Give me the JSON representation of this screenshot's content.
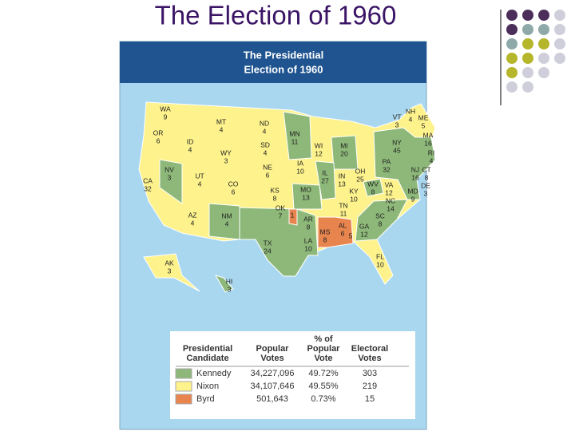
{
  "title": "The Election of 1960",
  "map": {
    "heading": [
      "The Presidential",
      "Election of 1960"
    ],
    "states": [
      {
        "abbr": "WA",
        "votes": 9
      },
      {
        "abbr": "OR",
        "votes": 6
      },
      {
        "abbr": "CA",
        "votes": 32
      },
      {
        "abbr": "NV",
        "votes": 3
      },
      {
        "abbr": "ID",
        "votes": 4
      },
      {
        "abbr": "MT",
        "votes": 4
      },
      {
        "abbr": "WY",
        "votes": 3
      },
      {
        "abbr": "UT",
        "votes": 4
      },
      {
        "abbr": "AZ",
        "votes": 4
      },
      {
        "abbr": "CO",
        "votes": 6
      },
      {
        "abbr": "NM",
        "votes": 4
      },
      {
        "abbr": "ND",
        "votes": 4
      },
      {
        "abbr": "SD",
        "votes": 4
      },
      {
        "abbr": "NE",
        "votes": 6
      },
      {
        "abbr": "KS",
        "votes": 8
      },
      {
        "abbr": "OK",
        "votes": 7,
        "extra": 1
      },
      {
        "abbr": "TX",
        "votes": 24
      },
      {
        "abbr": "MN",
        "votes": 11
      },
      {
        "abbr": "IA",
        "votes": 10
      },
      {
        "abbr": "MO",
        "votes": 13
      },
      {
        "abbr": "AR",
        "votes": 8
      },
      {
        "abbr": "LA",
        "votes": 10
      },
      {
        "abbr": "WI",
        "votes": 12
      },
      {
        "abbr": "IL",
        "votes": 27
      },
      {
        "abbr": "MI",
        "votes": 20
      },
      {
        "abbr": "IN",
        "votes": 13
      },
      {
        "abbr": "OH",
        "votes": 25
      },
      {
        "abbr": "KY",
        "votes": 10
      },
      {
        "abbr": "TN",
        "votes": 11
      },
      {
        "abbr": "MS",
        "votes": 8
      },
      {
        "abbr": "AL",
        "votes": 6,
        "extra": 5
      },
      {
        "abbr": "GA",
        "votes": 12
      },
      {
        "abbr": "FL",
        "votes": 10
      },
      {
        "abbr": "SC",
        "votes": 8
      },
      {
        "abbr": "NC",
        "votes": 14
      },
      {
        "abbr": "VA",
        "votes": 12
      },
      {
        "abbr": "WV",
        "votes": 8
      },
      {
        "abbr": "PA",
        "votes": 32
      },
      {
        "abbr": "NY",
        "votes": 45
      },
      {
        "abbr": "VT",
        "votes": 3
      },
      {
        "abbr": "NH",
        "votes": 4
      },
      {
        "abbr": "ME",
        "votes": 5
      },
      {
        "abbr": "MA",
        "votes": 16
      },
      {
        "abbr": "RI",
        "votes": 4
      },
      {
        "abbr": "CT",
        "votes": 8
      },
      {
        "abbr": "NJ",
        "votes": 16
      },
      {
        "abbr": "DE",
        "votes": 3
      },
      {
        "abbr": "MD",
        "votes": 9
      },
      {
        "abbr": "AK",
        "votes": 3
      },
      {
        "abbr": "HI",
        "votes": 3
      }
    ]
  },
  "legend": {
    "headers": [
      [
        "Presidential",
        "Candidate"
      ],
      [
        "Popular",
        "Votes"
      ],
      [
        "% of",
        "Popular",
        "Vote"
      ],
      [
        "Electoral",
        "Votes"
      ]
    ],
    "rows": [
      {
        "candidate": "Kennedy",
        "popular": "34,227,096",
        "percent": "49.72%",
        "electoral": 303
      },
      {
        "candidate": "Nixon",
        "popular": "34,107,646",
        "percent": "49.55%",
        "electoral": 219
      },
      {
        "candidate": "Byrd",
        "popular": "501,643",
        "percent": "0.73%",
        "electoral": 15
      }
    ]
  }
}
